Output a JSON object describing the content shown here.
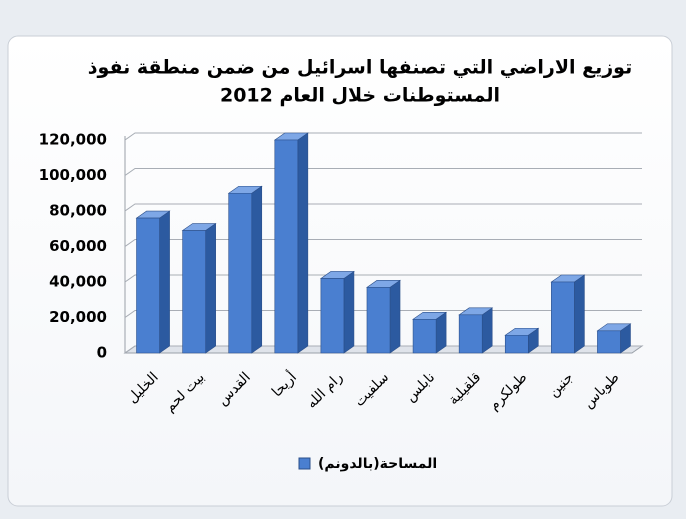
{
  "chart_data": {
    "type": "bar",
    "title": [
      "توزيع الاراضي التي تصنفها اسرائيل من ضمن منطقة نفوذ",
      "المستوطنات خلال العام 2012"
    ],
    "categories": [
      "الخليل",
      "بيت لحم",
      "القدس",
      "أريحا",
      "رام الله",
      "سلفيت",
      "نابلس",
      "قلقيلية",
      "طولكرم",
      "جنين",
      "طوباس"
    ],
    "series": [
      {
        "name": "(بالدونم)المساحة",
        "color": "#4a7fd0",
        "values": [
          76000,
          69000,
          90000,
          120000,
          42000,
          37000,
          19000,
          21500,
          10000,
          40000,
          12500
        ]
      }
    ],
    "ylim": [
      0,
      120000
    ],
    "yticks": [
      0,
      {
        "value": 20000,
        "label": "20,000"
      },
      {
        "value": 40000,
        "label": "40,000"
      },
      {
        "value": 60000,
        "label": "60,000"
      },
      {
        "value": 80000,
        "label": "80,000"
      },
      {
        "value": 100000,
        "label": "100,000"
      },
      {
        "value": 120000,
        "label": "120,000"
      }
    ],
    "grid": true,
    "legend": "bottom"
  }
}
